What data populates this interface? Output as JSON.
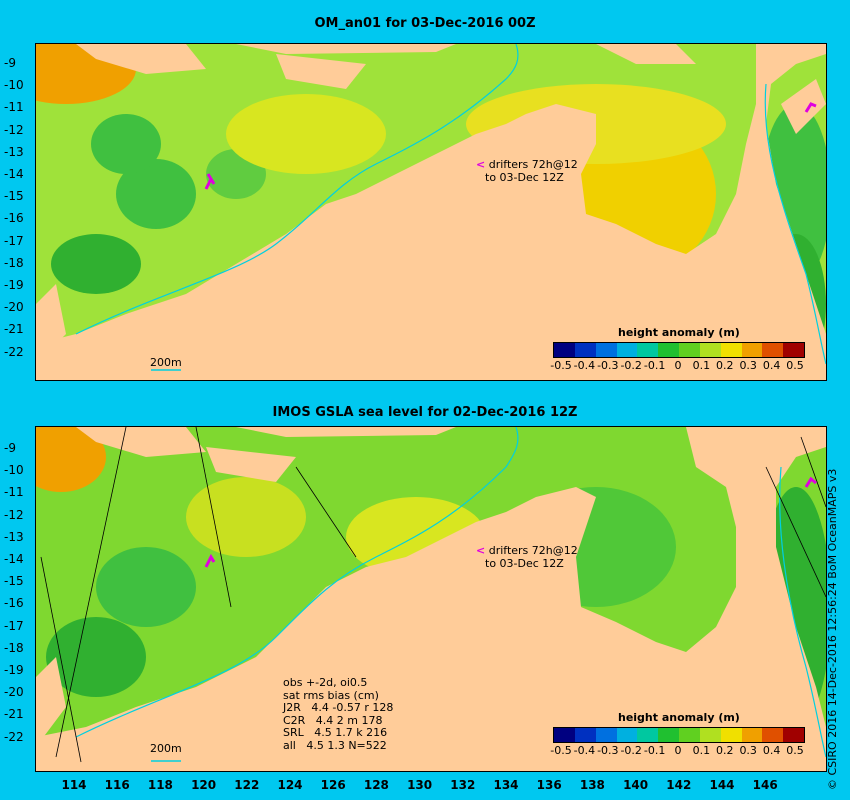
{
  "panels": [
    {
      "title": "OM_an01 for 03-Dec-2016 00Z",
      "drifter_label_1": "drifters 72h@12",
      "drifter_label_2": "to 03-Dec 12Z",
      "colorbar_title": "height anomaly (m)",
      "scale_label": "200m"
    },
    {
      "title": "IMOS GSLA sea level  for 02-Dec-2016 12Z",
      "drifter_label_1": "drifters 72h@12",
      "drifter_label_2": "to 03-Dec 12Z",
      "colorbar_title": "height anomaly (m)",
      "scale_label": "200m",
      "stats": [
        "obs +-2d, oi0.5",
        "sat rms bias (cm)",
        "J2R   4.4 -0.57 r 128",
        "C2R   4.4 2 m 178",
        "SRL   4.5 1.7 k 216",
        "all   4.5 1.3 N=522"
      ]
    }
  ],
  "lat_ticks": [
    "-9",
    "-10",
    "-11",
    "-12",
    "-13",
    "-14",
    "-15",
    "-16",
    "-17",
    "-18",
    "-19",
    "-20",
    "-21",
    "-22"
  ],
  "lon_ticks": [
    "114",
    "116",
    "118",
    "120",
    "122",
    "124",
    "126",
    "128",
    "130",
    "132",
    "134",
    "136",
    "138",
    "140",
    "142",
    "144",
    "146"
  ],
  "colorbar_labels": [
    "-0.5",
    "-0.4",
    "-0.3",
    "-0.2",
    "-0.1",
    "0",
    "0.1",
    "0.2",
    "0.3",
    "0.4",
    "0.5"
  ],
  "colorbar_colors": [
    "#000080",
    "#0030c0",
    "#0070e0",
    "#00b0e0",
    "#00c8a0",
    "#20c030",
    "#60d020",
    "#b0e020",
    "#f0e000",
    "#f0a000",
    "#e05000",
    "#a00000"
  ],
  "credit": "© CSIRO 2016  14-Dec-2016 12:56:24 BoM OceanMAPS v3",
  "colors": {
    "background": "#00c8f0",
    "land": "#ffcc99",
    "ocean_mid": "#9fe23a",
    "drifter": "#e000e0"
  }
}
